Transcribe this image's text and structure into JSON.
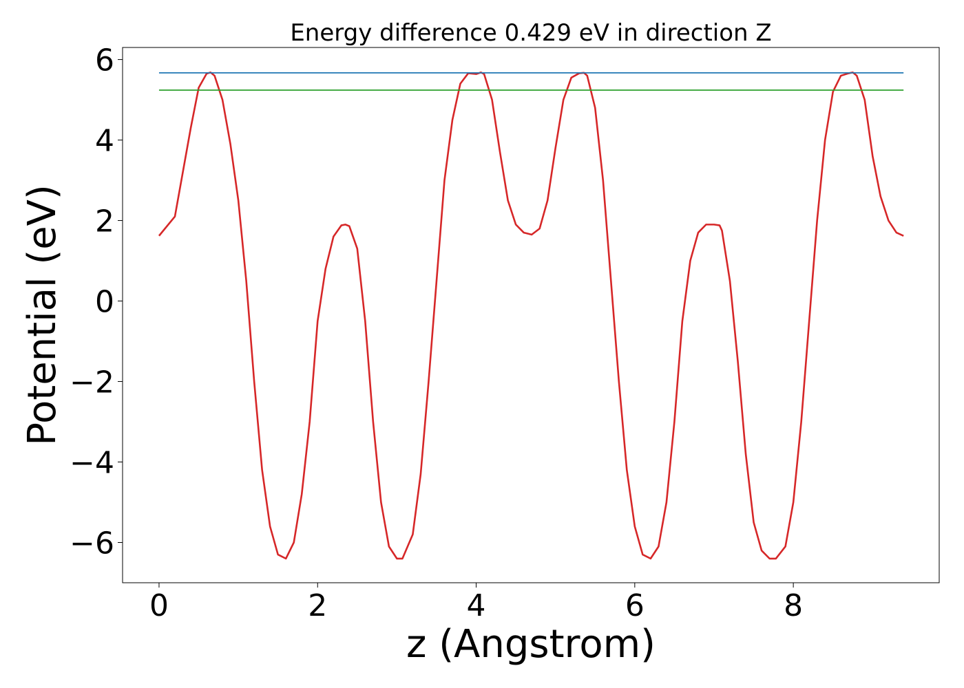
{
  "chart_data": {
    "type": "line",
    "title": "Energy difference 0.429 eV in direction Z",
    "xlabel": "z (Angstrom)",
    "ylabel": "Potential (eV)",
    "xlim": [
      -0.46,
      9.84
    ],
    "ylim": [
      -7.0,
      6.3
    ],
    "x_ticks": [
      0,
      2,
      4,
      6,
      8
    ],
    "y_ticks": [
      6,
      4,
      2,
      0,
      -2,
      -4,
      -6
    ],
    "x_tick_labels": [
      "0",
      "2",
      "4",
      "6",
      "8"
    ],
    "y_tick_labels": [
      "6",
      "4",
      "2",
      "0",
      "−2",
      "−4",
      "−6"
    ],
    "grid": false,
    "series": [
      {
        "color": "#d62728",
        "x": [
          0.0,
          0.2,
          0.4,
          0.5,
          0.6,
          0.65,
          0.7,
          0.8,
          0.9,
          1.0,
          1.1,
          1.2,
          1.3,
          1.4,
          1.5,
          1.6,
          1.7,
          1.8,
          1.9,
          2.0,
          2.1,
          2.2,
          2.3,
          2.35,
          2.4,
          2.5,
          2.6,
          2.7,
          2.8,
          2.9,
          3.0,
          3.07,
          3.2,
          3.3,
          3.4,
          3.5,
          3.6,
          3.7,
          3.8,
          3.9,
          4.0,
          4.06,
          4.1,
          4.2,
          4.3,
          4.4,
          4.5,
          4.6,
          4.7,
          4.8,
          4.9,
          5.0,
          5.1,
          5.2,
          5.3,
          5.36,
          5.4,
          5.5,
          5.6,
          5.7,
          5.8,
          5.9,
          6.0,
          6.1,
          6.2,
          6.3,
          6.4,
          6.5,
          6.6,
          6.7,
          6.8,
          6.9,
          7.0,
          7.07,
          7.1,
          7.2,
          7.3,
          7.4,
          7.5,
          7.6,
          7.7,
          7.78,
          7.9,
          8.0,
          8.1,
          8.2,
          8.3,
          8.4,
          8.5,
          8.6,
          8.7,
          8.75,
          8.8,
          8.9,
          9.0,
          9.1,
          9.2,
          9.3,
          9.39
        ],
        "y": [
          1.62,
          2.1,
          4.3,
          5.3,
          5.65,
          5.68,
          5.6,
          5.0,
          3.9,
          2.5,
          0.5,
          -2.0,
          -4.2,
          -5.6,
          -6.3,
          -6.4,
          -6.0,
          -4.8,
          -3.0,
          -0.5,
          0.8,
          1.6,
          1.88,
          1.9,
          1.86,
          1.3,
          -0.5,
          -3.0,
          -5.0,
          -6.1,
          -6.4,
          -6.4,
          -5.8,
          -4.3,
          -2.0,
          0.5,
          3.0,
          4.5,
          5.4,
          5.66,
          5.64,
          5.68,
          5.64,
          5.0,
          3.7,
          2.5,
          1.9,
          1.7,
          1.65,
          1.8,
          2.5,
          3.8,
          5.0,
          5.55,
          5.66,
          5.67,
          5.6,
          4.8,
          3.0,
          0.5,
          -2.0,
          -4.2,
          -5.6,
          -6.3,
          -6.4,
          -6.1,
          -5.0,
          -3.0,
          -0.5,
          1.0,
          1.7,
          1.9,
          1.9,
          1.88,
          1.75,
          0.5,
          -1.5,
          -3.8,
          -5.5,
          -6.2,
          -6.4,
          -6.4,
          -6.1,
          -5.0,
          -3.0,
          -0.5,
          2.0,
          4.0,
          5.2,
          5.6,
          5.66,
          5.68,
          5.6,
          5.0,
          3.6,
          2.6,
          2.0,
          1.7,
          1.62
        ]
      },
      {
        "color": "#1f77b4",
        "x": [
          0.0,
          9.39
        ],
        "y": [
          5.67,
          5.67
        ]
      },
      {
        "color": "#2ca02c",
        "x": [
          0.0,
          9.39
        ],
        "y": [
          5.24,
          5.24
        ]
      }
    ]
  }
}
